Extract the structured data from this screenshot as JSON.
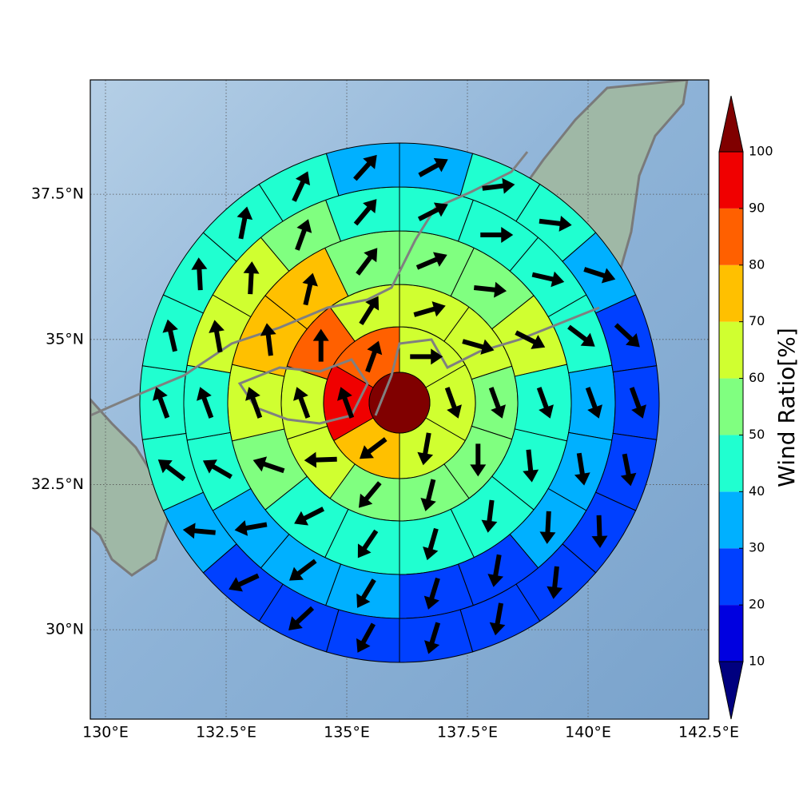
{
  "chart_data": {
    "type": "polar_wind_map",
    "xlim": [
      129.685,
      142.5
    ],
    "ylim": [
      28.46,
      39.47
    ],
    "xticks": [
      {
        "value": 130,
        "label": "130°E"
      },
      {
        "value": 132.5,
        "label": "132.5°E"
      },
      {
        "value": 135,
        "label": "135°E"
      },
      {
        "value": 137.5,
        "label": "137.5°E"
      },
      {
        "value": 140,
        "label": "140°E"
      },
      {
        "value": 142.5,
        "label": "142.5°E"
      }
    ],
    "yticks": [
      {
        "value": 30,
        "label": "30°N"
      },
      {
        "value": 32.5,
        "label": "32.5°N"
      },
      {
        "value": 35,
        "label": "35°N"
      },
      {
        "value": 37.5,
        "label": "37.5°N"
      }
    ],
    "grid": true,
    "rings": [
      {
        "values": [
          65,
          65,
          65,
          75,
          95,
          85
        ],
        "directions": [
          0,
          -70,
          -100,
          -143,
          110,
          70
        ]
      },
      {
        "values": [
          65,
          65,
          55,
          55,
          55,
          55,
          65,
          65,
          85,
          65
        ],
        "directions": [
          16,
          -16,
          -70,
          -90,
          -104,
          -130,
          -178,
          110,
          90,
          58
        ]
      },
      {
        "values": [
          55,
          55,
          65,
          45,
          45,
          45,
          45,
          45,
          45,
          55,
          65,
          75,
          75,
          55
        ],
        "directions": [
          23,
          -6,
          -27,
          -70,
          -84,
          -97,
          -106,
          -124,
          -153,
          161,
          110,
          97,
          77,
          53
        ]
      },
      {
        "values": [
          45,
          45,
          45,
          45,
          35,
          35,
          35,
          25,
          25,
          35,
          35,
          35,
          45,
          45,
          65,
          65,
          55,
          45
        ],
        "directions": [
          27,
          0,
          -13,
          -37,
          -70,
          -81,
          -93,
          -100,
          -107,
          -121,
          -143,
          -170,
          150,
          110,
          100,
          87,
          70,
          50
        ]
      },
      {
        "values": [
          35,
          45,
          45,
          35,
          25,
          25,
          25,
          25,
          25,
          25,
          25,
          25,
          25,
          25,
          35,
          45,
          45,
          45,
          45,
          45,
          45,
          35
        ],
        "directions": [
          29,
          7,
          -7,
          -18,
          -43,
          -70,
          -79,
          -88,
          -96,
          -100,
          -107,
          -119,
          -137,
          -155,
          175,
          143,
          110,
          103,
          93,
          79,
          65,
          48
        ]
      }
    ],
    "colorbar": {
      "label": "Wind Ratio[%]",
      "levels": [
        10,
        20,
        30,
        40,
        50,
        60,
        70,
        80,
        90,
        100
      ],
      "colors": [
        "#0000e0",
        "#0040ff",
        "#00b0ff",
        "#20ffd0",
        "#80ff80",
        "#d0ff30",
        "#ffc000",
        "#ff6000",
        "#f00000"
      ],
      "under": "#00007f",
      "over": "#800000"
    }
  }
}
